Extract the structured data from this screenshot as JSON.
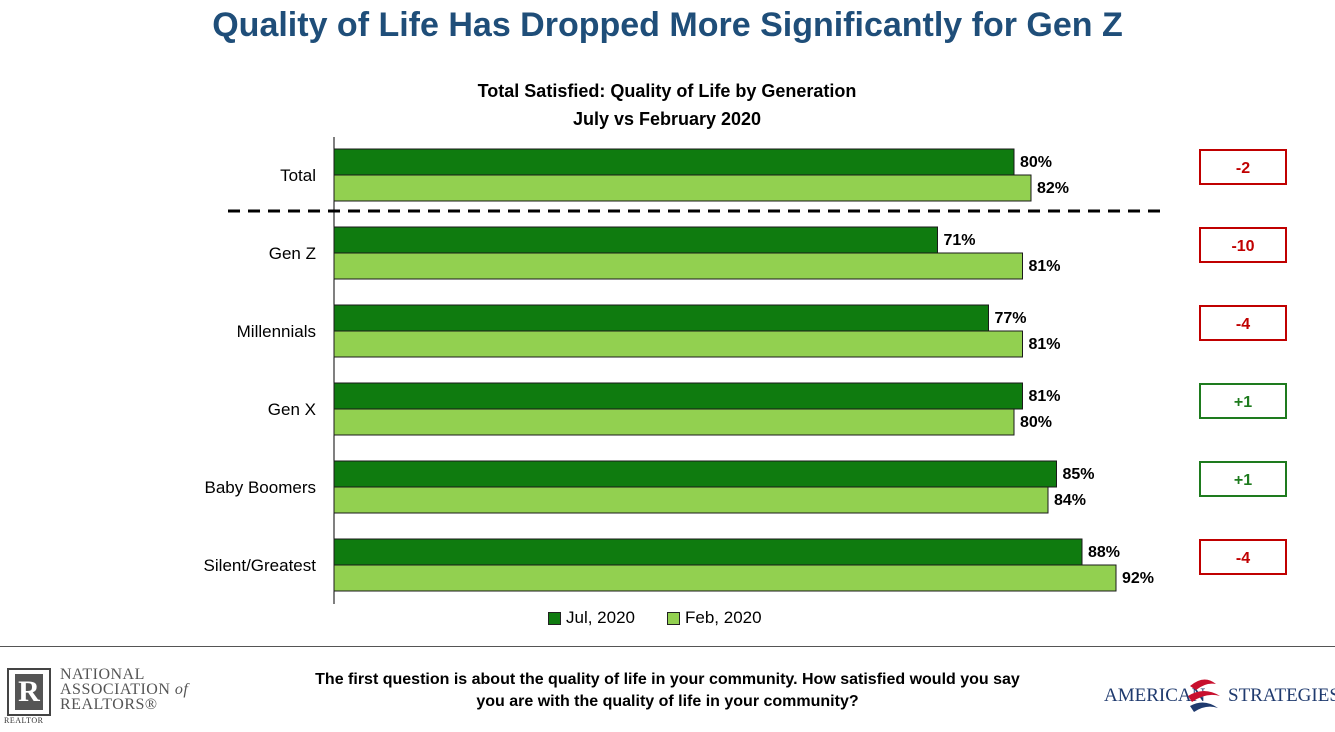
{
  "header": {
    "title": "Quality of Life Has Dropped More Significantly for Gen Z"
  },
  "chart_data": {
    "type": "bar",
    "orientation": "horizontal",
    "title": "Total Satisfied: Quality of Life by Generation",
    "subtitle": "July vs February 2020",
    "categories": [
      "Total",
      "Gen Z",
      "Millennials",
      "Gen X",
      "Baby Boomers",
      "Silent/Greatest"
    ],
    "series": [
      {
        "name": "Jul, 2020",
        "color": "#0F7B0F",
        "values": [
          80,
          71,
          77,
          81,
          85,
          88
        ],
        "labels": [
          "80%",
          "71%",
          "77%",
          "81%",
          "85%",
          "88%"
        ]
      },
      {
        "name": "Feb, 2020",
        "color": "#92D050",
        "values": [
          82,
          81,
          81,
          80,
          84,
          92
        ],
        "labels": [
          "82%",
          "81%",
          "81%",
          "80%",
          "84%",
          "92%"
        ]
      }
    ],
    "changes": [
      {
        "label": "-2",
        "direction": "down",
        "color": "#C00000"
      },
      {
        "label": "-10",
        "direction": "down",
        "color": "#C00000"
      },
      {
        "label": "-4",
        "direction": "down",
        "color": "#C00000"
      },
      {
        "label": "+1",
        "direction": "up",
        "color": "#1E7B1E"
      },
      {
        "label": "+1",
        "direction": "up",
        "color": "#1E7B1E"
      },
      {
        "label": "-4",
        "direction": "down",
        "color": "#C00000"
      }
    ],
    "xlim": [
      0,
      100
    ],
    "separator_after": "Total",
    "legend": "bottom",
    "grid": false
  },
  "legend": {
    "jul_label": "Jul, 2020",
    "feb_label": "Feb, 2020"
  },
  "footer": {
    "question": "The first question is about the quality of life in your community. How satisfied would you say you are with the quality of life in your community?",
    "nar_logo": {
      "line1": "NATIONAL",
      "line2": "ASSOCIATION",
      "line2_suffix": "of",
      "line3": "REALTORS®",
      "badge": "REALTOR"
    },
    "as_logo": {
      "left": "AMERICAN",
      "right": "STRATEGIES"
    }
  }
}
